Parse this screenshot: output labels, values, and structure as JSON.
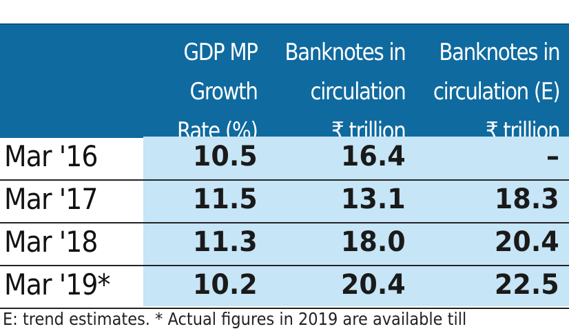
{
  "chart_data": {
    "type": "table",
    "columns": [
      "",
      [
        "GDP MP",
        "Growth",
        "Rate (%)"
      ],
      [
        "Banknotes in",
        "circulation",
        "₹ trillion"
      ],
      [
        "Banknotes in",
        "circulation (E)",
        "₹ trillion"
      ]
    ],
    "rows": [
      {
        "label": "Mar '16",
        "values": [
          "10.5",
          "16.4",
          "–"
        ]
      },
      {
        "label": "Mar '17",
        "values": [
          "11.5",
          "13.1",
          "18.3"
        ]
      },
      {
        "label": "Mar '18",
        "values": [
          "11.3",
          "18.0",
          "20.4"
        ]
      },
      {
        "label": "Mar '19*",
        "values": [
          "10.2",
          "20.4",
          "22.5"
        ]
      }
    ],
    "footnote": "E: trend estimates. * Actual figures in 2019 are available till"
  },
  "colors": {
    "header": "#0f6a9f",
    "band": "#c6e5f6"
  }
}
